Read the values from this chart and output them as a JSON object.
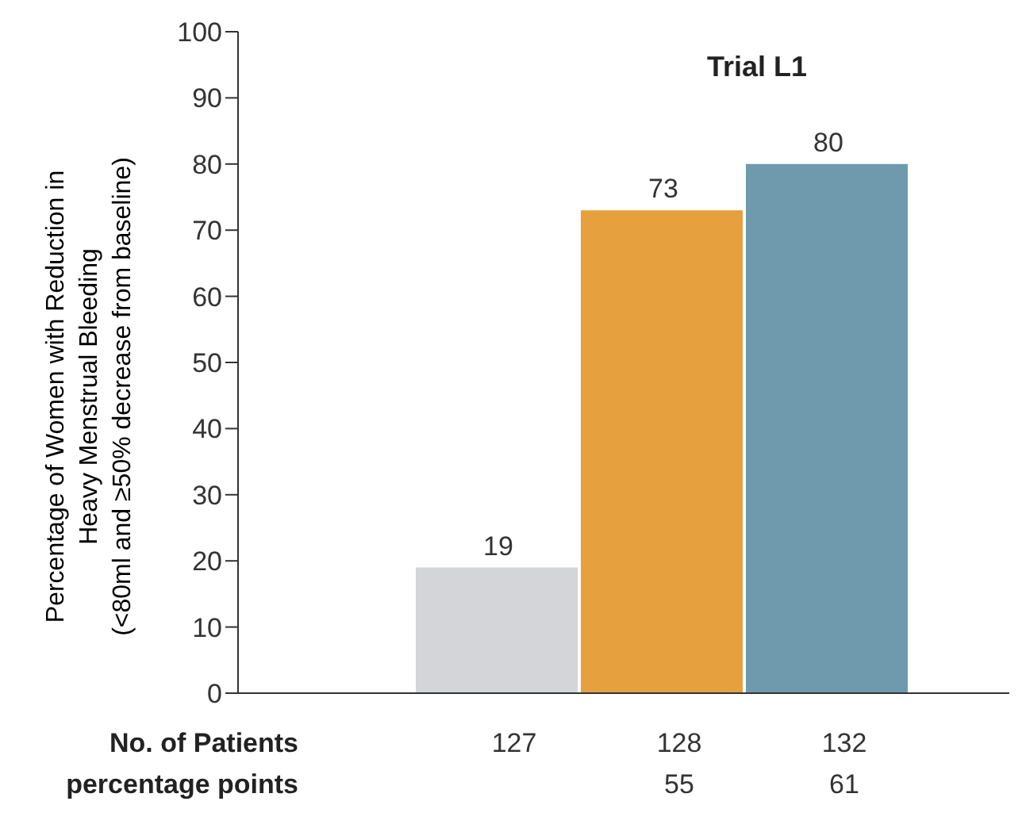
{
  "chart_data": {
    "type": "bar",
    "title": "Trial L1",
    "ylabel": "Percentage of Women with Reduction in\nHeavy Menstrual Bleeding\n(<80ml and ≥50% decrease from baseline)",
    "categories": [
      null,
      null,
      null
    ],
    "values": [
      19,
      73,
      80
    ],
    "colors": [
      "#d3d5d9",
      "#e6a03e",
      "#6f9aad"
    ],
    "data_labels": true,
    "ylim": [
      0,
      100
    ],
    "yticks": [
      0,
      10,
      20,
      30,
      40,
      50,
      60,
      70,
      80,
      90,
      100
    ],
    "annotations": [
      "No. of Patients",
      "127",
      "128",
      "132",
      "percentage points",
      "55",
      "61"
    ]
  }
}
